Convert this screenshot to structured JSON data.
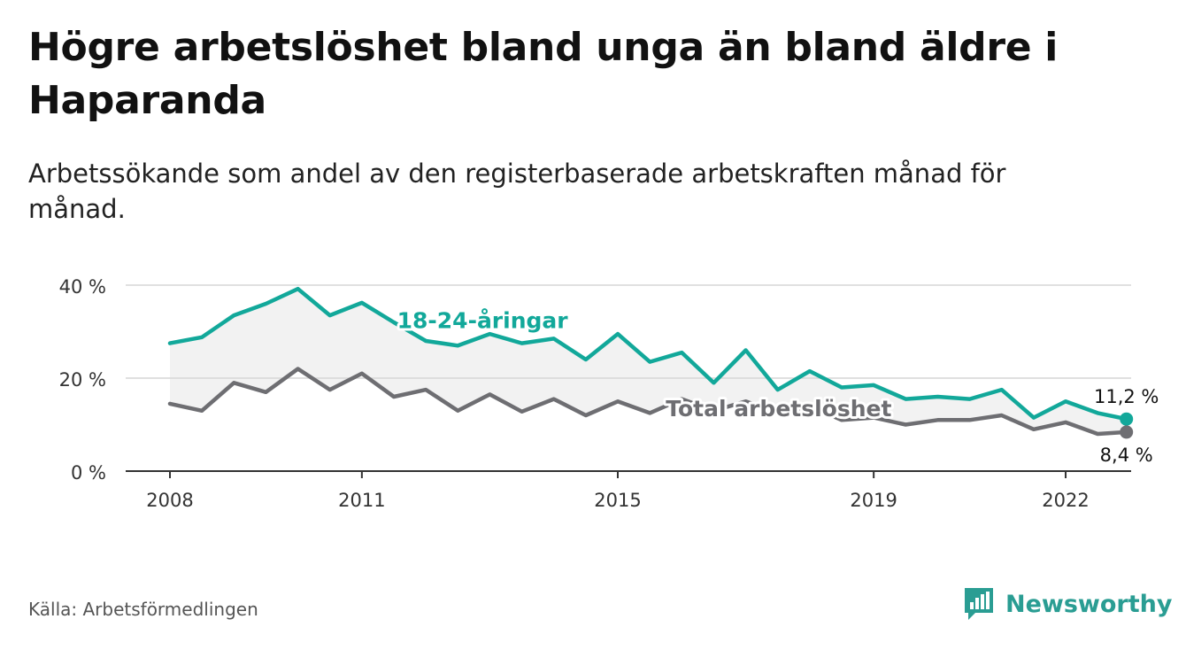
{
  "title": "Högre arbetslöshet bland unga än bland äldre i Haparanda",
  "subtitle": "Arbetssökande som andel av den registerbaserade arbetskraften månad för månad.",
  "source": "Källa: Arbetsförmedlingen",
  "brand": {
    "name": "Newsworthy",
    "icon": "newsworthy-logo-icon"
  },
  "colors": {
    "youth": "#12a89a",
    "total": "#6e6e72",
    "grid": "#d6d6d6",
    "band": "#f2f2f2",
    "axis": "#333333"
  },
  "chart_data": {
    "type": "line",
    "title": "Högre arbetslöshet bland unga än bland äldre i Haparanda",
    "xlabel": "",
    "ylabel": "",
    "xlim": [
      2008,
      2023.3
    ],
    "ylim": [
      0,
      40
    ],
    "yticks": [
      0,
      20,
      40
    ],
    "ytick_labels": [
      "0 %",
      "20 %",
      "40 %"
    ],
    "xticks": [
      2008,
      2011,
      2015,
      2019,
      2022
    ],
    "xtick_labels": [
      "2008",
      "2011",
      "2015",
      "2019",
      "2022"
    ],
    "grid": true,
    "series": [
      {
        "name": "18-24-åringar",
        "label": "18-24-åringar",
        "color": "#12a89a",
        "end_label": "11,2 %",
        "x": [
          2008.0,
          2008.5,
          2009.0,
          2009.5,
          2010.0,
          2010.5,
          2011.0,
          2011.5,
          2012.0,
          2012.5,
          2013.0,
          2013.5,
          2014.0,
          2014.5,
          2015.0,
          2015.5,
          2016.0,
          2016.5,
          2017.0,
          2017.5,
          2018.0,
          2018.5,
          2019.0,
          2019.5,
          2020.0,
          2020.5,
          2021.0,
          2021.5,
          2022.0,
          2022.5,
          2022.95
        ],
        "values": [
          27.5,
          28.8,
          33.5,
          36.0,
          39.2,
          33.5,
          36.2,
          32.0,
          28.0,
          27.0,
          29.5,
          27.5,
          28.5,
          24.0,
          29.5,
          23.5,
          25.5,
          19.0,
          26.0,
          17.5,
          21.5,
          18.0,
          18.5,
          15.5,
          16.0,
          15.5,
          17.5,
          11.5,
          15.0,
          12.5,
          11.2
        ]
      },
      {
        "name": "Total arbetslöshet",
        "label": "Total arbetslöshet",
        "color": "#6e6e72",
        "end_label": "8,4 %",
        "x": [
          2008.0,
          2008.5,
          2009.0,
          2009.5,
          2010.0,
          2010.5,
          2011.0,
          2011.5,
          2012.0,
          2012.5,
          2013.0,
          2013.5,
          2014.0,
          2014.5,
          2015.0,
          2015.5,
          2016.0,
          2016.5,
          2017.0,
          2017.5,
          2018.0,
          2018.5,
          2019.0,
          2019.5,
          2020.0,
          2020.5,
          2021.0,
          2021.5,
          2022.0,
          2022.5,
          2022.95
        ],
        "values": [
          14.5,
          13.0,
          19.0,
          17.0,
          22.0,
          17.5,
          21.0,
          16.0,
          17.5,
          13.0,
          16.5,
          12.8,
          15.5,
          12.0,
          15.0,
          12.5,
          15.5,
          13.0,
          15.0,
          12.5,
          14.0,
          11.0,
          11.5,
          10.0,
          11.0,
          11.0,
          12.0,
          9.0,
          10.5,
          8.0,
          8.4
        ]
      }
    ]
  }
}
